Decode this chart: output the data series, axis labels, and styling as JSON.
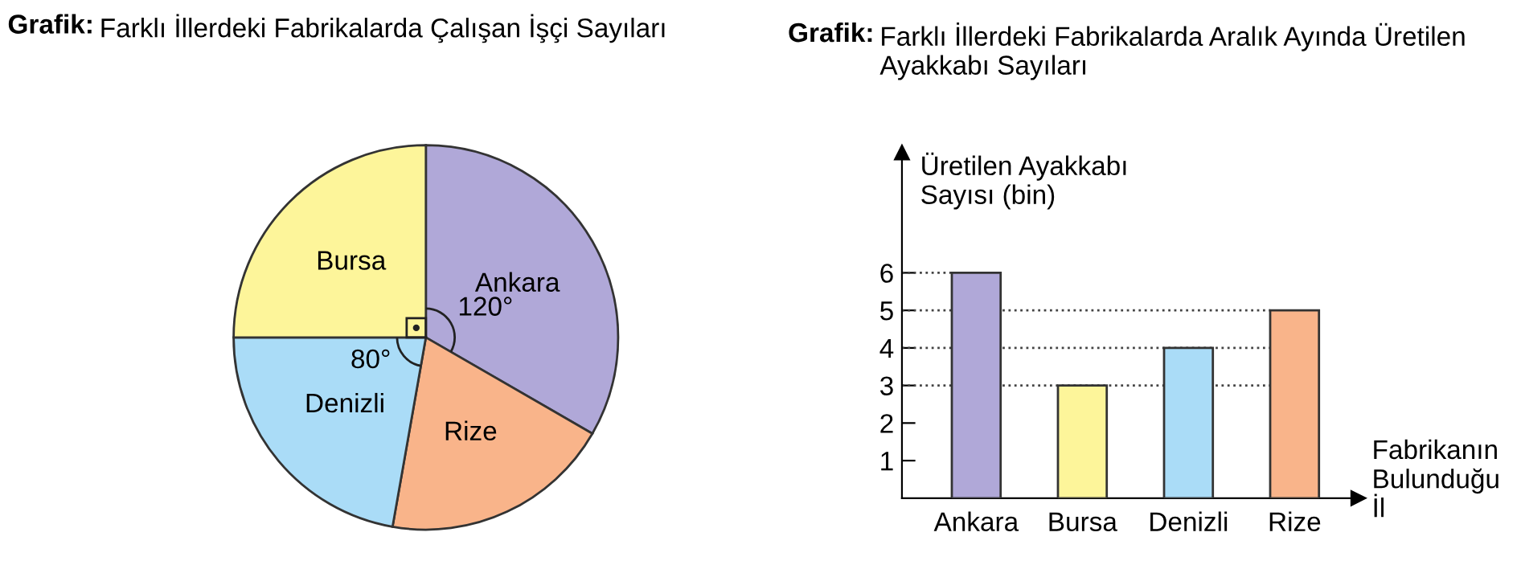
{
  "chart_data": [
    {
      "type": "pie",
      "title": "Grafik: Farklı İllerdeki Fabrikalarda Çalışan İşçi Sayıları",
      "categories": [
        "Ankara",
        "Rize",
        "Denizli",
        "Bursa"
      ],
      "values": [
        33.33,
        19.44,
        22.22,
        25
      ],
      "colors": [
        "#b0a8d8",
        "#f9b48a",
        "#aadcf7",
        "#fdf59a"
      ],
      "annotations": [
        "120°",
        "80°"
      ]
    },
    {
      "type": "bar",
      "title": "Grafik: Farklı İllerdeki Fabrikalarda Aralık Ayında Üretilen Ayakkabı Sayıları",
      "ylabel": "Üretilen Ayakkabı\nSayısı (bin)",
      "xlabel": "Fabrikanın\nBulunduğu\nİl",
      "categories": [
        "Ankara",
        "Bursa",
        "Denizli",
        "Rize"
      ],
      "values": [
        6,
        3,
        4,
        5
      ],
      "colors": [
        "#b0a8d8",
        "#fdf59a",
        "#aadcf7",
        "#f9b48a"
      ],
      "ylim": [
        0,
        9.2
      ],
      "yticks": [
        1,
        2,
        3,
        4,
        5,
        6
      ],
      "ref_lines": [
        {
          "axis": "y",
          "value": 6,
          "line_style": "dotted"
        },
        {
          "axis": "y",
          "value": 5,
          "line_style": "dotted"
        },
        {
          "axis": "y",
          "value": 4,
          "line_style": "dotted"
        },
        {
          "axis": "y",
          "value": 3,
          "line_style": "dotted"
        }
      ]
    }
  ]
}
